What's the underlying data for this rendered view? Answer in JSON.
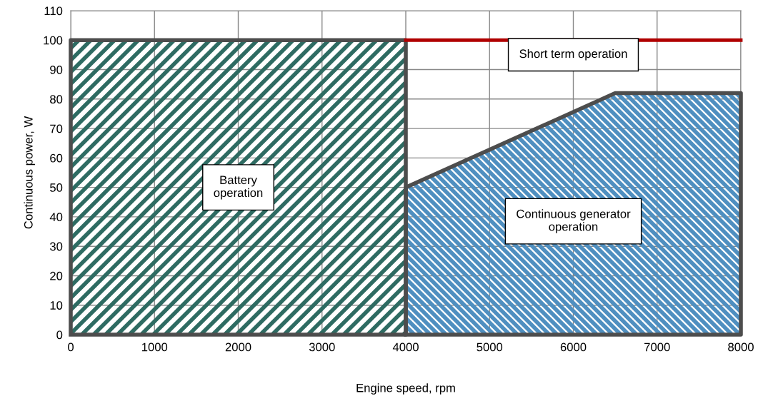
{
  "chart_data": {
    "type": "area",
    "xlabel": "Engine speed, rpm",
    "ylabel": "Continuous power, W",
    "series": [
      {
        "color": "#2e6b62",
        "x": [
          0,
          4000
        ],
        "values": [
          100,
          100
        ]
      },
      {
        "color": "#4f8fc0",
        "x": [
          4000,
          6500,
          8000
        ],
        "values": [
          50,
          82,
          82
        ]
      },
      {
        "type": "line",
        "color": "#b00000",
        "x": [
          4000,
          8000
        ],
        "values": [
          100,
          100
        ]
      }
    ],
    "annotations": [
      "Battery\noperation",
      "Short term operation",
      "Continuous generator\noperation"
    ],
    "xlim": [
      0,
      8000
    ],
    "ylim": [
      0,
      110
    ],
    "xticks": [
      0,
      1000,
      2000,
      3000,
      4000,
      5000,
      6000,
      7000,
      8000
    ],
    "yticks": [
      0,
      10,
      20,
      30,
      40,
      50,
      60,
      70,
      80,
      90,
      100,
      110
    ],
    "grid": true
  }
}
